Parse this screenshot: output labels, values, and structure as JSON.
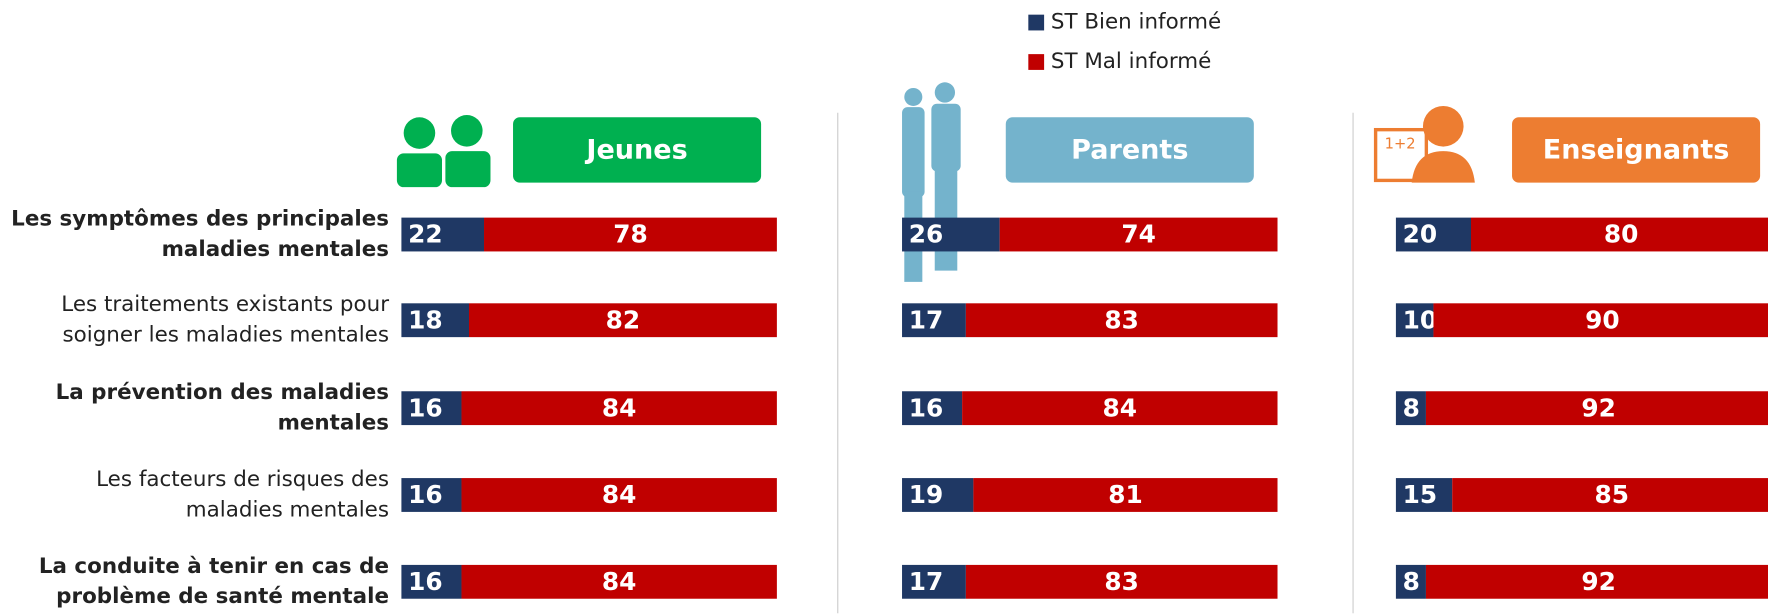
{
  "chart_data": {
    "type": "stacked-barh",
    "categories": [
      "Les symptômes des principales maladies mentales",
      "Les traitements existants pour soigner les maladies mentales",
      "La prévention des maladies mentales",
      "Les facteurs de risques des maladies mentales",
      "La conduite à tenir en cas de problème de santé mentale"
    ],
    "series": [
      {
        "name": "ST Bien informé",
        "color": "#1f3864"
      },
      {
        "name": "ST Mal informé",
        "color": "#c00000"
      }
    ],
    "xlim": [
      0,
      100
    ],
    "panels": [
      {
        "title": "Jeunes",
        "color": "#00b050",
        "values": [
          [
            22,
            18,
            16,
            16,
            16
          ],
          [
            78,
            82,
            84,
            84,
            84
          ]
        ]
      },
      {
        "title": "Parents",
        "color": "#74b3cc",
        "values": [
          [
            26,
            17,
            16,
            19,
            17
          ],
          [
            74,
            83,
            84,
            81,
            83
          ]
        ]
      },
      {
        "title": "Enseignants",
        "color": "#ed7d31",
        "values": [
          [
            20,
            10,
            8,
            15,
            8
          ],
          [
            80,
            90,
            92,
            85,
            92
          ]
        ]
      }
    ]
  }
}
